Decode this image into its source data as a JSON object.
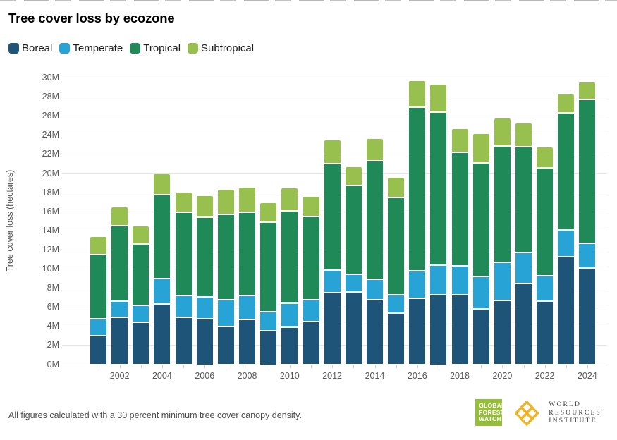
{
  "title": "Tree cover loss by ecozone",
  "legend": [
    {
      "label": "Boreal",
      "color": "#1d5477"
    },
    {
      "label": "Temperate",
      "color": "#27a3d6"
    },
    {
      "label": "Tropical",
      "color": "#1f8a57"
    },
    {
      "label": "Subtropical",
      "color": "#97c04f"
    }
  ],
  "footer": {
    "note": "All figures calculated with a 30 percent minimum tree cover canopy density."
  },
  "logos": {
    "gfw": {
      "lines": [
        "GLOBAL",
        "FOREST",
        "WATCH"
      ],
      "bg_color": "#97bd3d"
    },
    "wri": {
      "lines": [
        "WORLD",
        "RESOURCES",
        "INSTITUTE"
      ],
      "gold_color": "#f0b429"
    }
  },
  "chart_data": {
    "type": "bar",
    "stacked": true,
    "value_unit": "million hectares",
    "ylabel": "Tree cover loss (hectares)",
    "ylim": [
      0,
      30
    ],
    "ytick_step": 2,
    "ytick_suffix": "M",
    "grid": true,
    "legend_position": "top-left",
    "x": [
      2001,
      2002,
      2003,
      2004,
      2005,
      2006,
      2007,
      2008,
      2009,
      2010,
      2011,
      2012,
      2013,
      2014,
      2015,
      2016,
      2017,
      2018,
      2019,
      2020,
      2021,
      2022,
      2023,
      2024
    ],
    "x_labeled_ticks": [
      2002,
      2004,
      2006,
      2008,
      2010,
      2012,
      2014,
      2016,
      2018,
      2020,
      2022,
      2024
    ],
    "series": [
      {
        "name": "Boreal",
        "color": "#1d5477",
        "values": [
          2.9,
          4.8,
          4.3,
          6.2,
          4.8,
          4.7,
          3.9,
          4.6,
          3.4,
          3.8,
          4.4,
          7.4,
          7.5,
          6.7,
          5.3,
          6.8,
          7.2,
          7.2,
          5.7,
          6.6,
          8.4,
          6.5,
          11.2,
          10.0
        ]
      },
      {
        "name": "Temperate",
        "color": "#27a3d6",
        "values": [
          1.8,
          1.7,
          1.8,
          2.7,
          2.3,
          2.3,
          2.8,
          2.5,
          2.0,
          2.5,
          2.3,
          2.4,
          1.8,
          2.1,
          1.9,
          2.9,
          3.1,
          3.0,
          3.4,
          4.0,
          3.2,
          2.7,
          2.8,
          2.6
        ]
      },
      {
        "name": "Tropical",
        "color": "#1f8a57",
        "values": [
          6.7,
          7.9,
          6.4,
          8.8,
          8.7,
          8.3,
          8.9,
          8.7,
          9.4,
          9.7,
          8.7,
          11.1,
          9.3,
          12.4,
          10.2,
          17.1,
          16.0,
          11.9,
          11.9,
          12.2,
          11.1,
          11.3,
          12.2,
          15.0
        ]
      },
      {
        "name": "Subtropical",
        "color": "#97c04f",
        "values": [
          1.9,
          2.0,
          1.9,
          2.2,
          2.2,
          2.3,
          2.7,
          2.7,
          2.1,
          2.4,
          2.1,
          2.5,
          2.0,
          2.4,
          2.1,
          2.8,
          3.0,
          2.5,
          3.1,
          2.9,
          2.5,
          2.2,
          2.0,
          1.9
        ]
      }
    ],
    "totals": [
      13.3,
      16.4,
      14.4,
      19.9,
      18.0,
      17.6,
      18.3,
      18.5,
      16.9,
      18.4,
      17.5,
      23.4,
      20.6,
      23.6,
      19.5,
      29.6,
      29.3,
      24.6,
      24.1,
      25.7,
      25.2,
      22.7,
      28.2,
      29.5
    ]
  }
}
